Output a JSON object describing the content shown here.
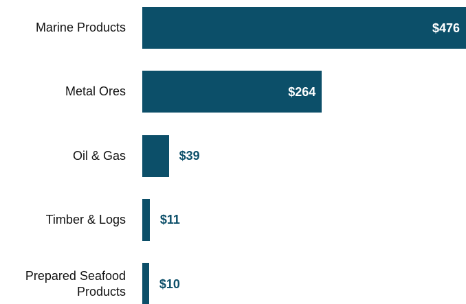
{
  "chart_data": {
    "type": "bar",
    "orientation": "horizontal",
    "categories": [
      "Marine Products",
      "Metal Ores",
      "Oil & Gas",
      "Timber & Logs",
      "Prepared Seafood Products"
    ],
    "values": [
      476,
      264,
      39,
      11,
      10
    ],
    "value_labels": [
      "$476",
      "$264",
      "$39",
      "$11",
      "$10"
    ],
    "color": "#0c4f69"
  }
}
